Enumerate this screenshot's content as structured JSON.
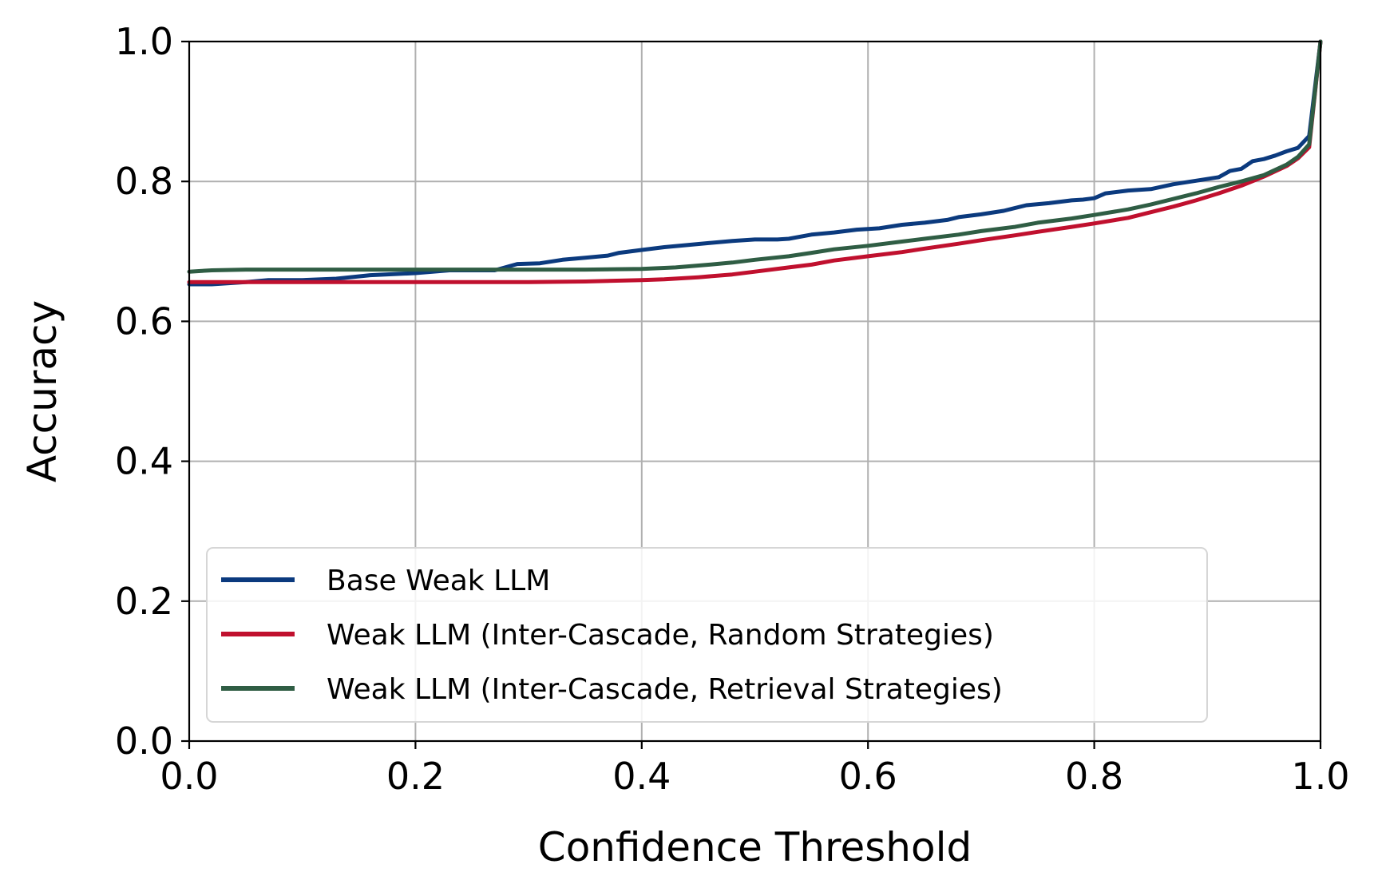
{
  "chart_data": {
    "type": "line",
    "xlabel": "Confidence Threshold",
    "ylabel": "Accuracy",
    "xlim": [
      0.0,
      1.0
    ],
    "ylim": [
      0.0,
      1.0
    ],
    "xticks": [
      "0.0",
      "0.2",
      "0.4",
      "0.6",
      "0.8",
      "1.0"
    ],
    "yticks": [
      "0.0",
      "0.2",
      "0.4",
      "0.6",
      "0.8",
      "1.0"
    ],
    "grid": true,
    "legend_position": "lower-left",
    "series": [
      {
        "name": "Base Weak LLM",
        "color": "#0b3a7e",
        "x": [
          0.0,
          0.02,
          0.05,
          0.07,
          0.1,
          0.13,
          0.16,
          0.2,
          0.23,
          0.27,
          0.29,
          0.31,
          0.33,
          0.35,
          0.37,
          0.38,
          0.4,
          0.42,
          0.44,
          0.46,
          0.48,
          0.5,
          0.52,
          0.53,
          0.55,
          0.57,
          0.59,
          0.61,
          0.63,
          0.65,
          0.67,
          0.68,
          0.7,
          0.72,
          0.74,
          0.76,
          0.78,
          0.79,
          0.8,
          0.81,
          0.83,
          0.85,
          0.87,
          0.89,
          0.91,
          0.92,
          0.93,
          0.94,
          0.95,
          0.96,
          0.97,
          0.98,
          0.99,
          1.0
        ],
        "y": [
          0.653,
          0.653,
          0.656,
          0.659,
          0.659,
          0.661,
          0.666,
          0.669,
          0.673,
          0.673,
          0.682,
          0.683,
          0.688,
          0.691,
          0.694,
          0.698,
          0.702,
          0.706,
          0.709,
          0.712,
          0.715,
          0.717,
          0.717,
          0.718,
          0.724,
          0.727,
          0.731,
          0.733,
          0.738,
          0.741,
          0.745,
          0.749,
          0.753,
          0.758,
          0.766,
          0.769,
          0.773,
          0.774,
          0.776,
          0.783,
          0.787,
          0.789,
          0.796,
          0.801,
          0.806,
          0.815,
          0.818,
          0.829,
          0.832,
          0.837,
          0.843,
          0.848,
          0.865,
          1.0
        ]
      },
      {
        "name": "Weak LLM (Inter-Cascade, Random Strategies)",
        "color": "#c0102e",
        "x": [
          0.0,
          0.05,
          0.1,
          0.2,
          0.3,
          0.35,
          0.4,
          0.42,
          0.45,
          0.48,
          0.5,
          0.53,
          0.55,
          0.57,
          0.6,
          0.63,
          0.65,
          0.68,
          0.7,
          0.73,
          0.75,
          0.78,
          0.8,
          0.83,
          0.85,
          0.87,
          0.89,
          0.91,
          0.93,
          0.95,
          0.97,
          0.98,
          0.99,
          1.0
        ],
        "y": [
          0.656,
          0.656,
          0.656,
          0.656,
          0.656,
          0.657,
          0.659,
          0.66,
          0.663,
          0.667,
          0.671,
          0.677,
          0.681,
          0.687,
          0.693,
          0.699,
          0.704,
          0.711,
          0.716,
          0.723,
          0.728,
          0.735,
          0.74,
          0.748,
          0.756,
          0.764,
          0.773,
          0.783,
          0.794,
          0.807,
          0.822,
          0.833,
          0.849,
          1.0
        ]
      },
      {
        "name": "Weak LLM (Inter-Cascade, Retrieval Strategies)",
        "color": "#2f5d44",
        "x": [
          0.0,
          0.02,
          0.05,
          0.1,
          0.2,
          0.3,
          0.35,
          0.4,
          0.43,
          0.46,
          0.48,
          0.5,
          0.53,
          0.55,
          0.57,
          0.6,
          0.63,
          0.65,
          0.68,
          0.7,
          0.73,
          0.75,
          0.78,
          0.8,
          0.83,
          0.85,
          0.87,
          0.89,
          0.91,
          0.93,
          0.95,
          0.97,
          0.98,
          0.99,
          1.0
        ],
        "y": [
          0.671,
          0.673,
          0.674,
          0.674,
          0.674,
          0.674,
          0.674,
          0.675,
          0.677,
          0.681,
          0.684,
          0.688,
          0.693,
          0.698,
          0.703,
          0.708,
          0.714,
          0.718,
          0.724,
          0.729,
          0.735,
          0.741,
          0.747,
          0.752,
          0.76,
          0.767,
          0.775,
          0.783,
          0.792,
          0.8,
          0.809,
          0.824,
          0.835,
          0.853,
          1.0
        ]
      }
    ]
  }
}
